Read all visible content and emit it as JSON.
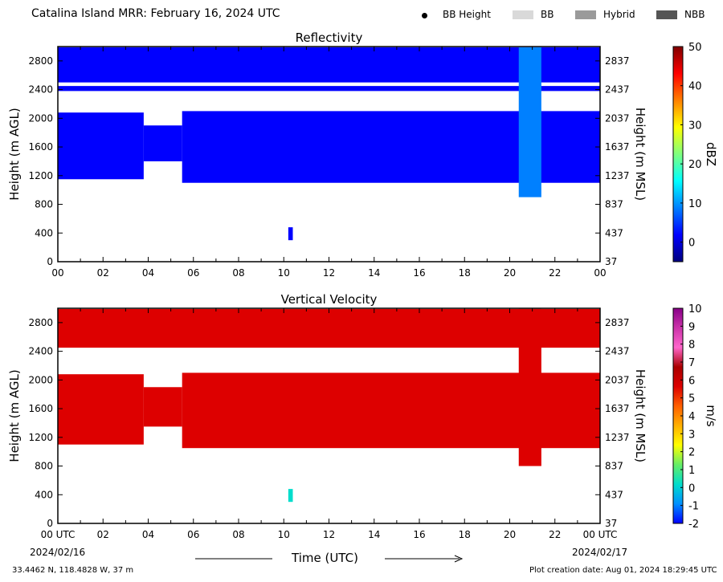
{
  "header": {
    "title": "Catalina Island MRR:  February 16, 2024 UTC",
    "legend": [
      {
        "label": "BB Height",
        "marker": "dot",
        "color": "#000000"
      },
      {
        "label": "BB",
        "marker": "box",
        "color": "#d9d9d9"
      },
      {
        "label": "Hybrid",
        "marker": "box",
        "color": "#9a9a9a"
      },
      {
        "label": "NBB",
        "marker": "box",
        "color": "#555555"
      }
    ]
  },
  "footer": {
    "location": "33.4462 N, 118.4828 W, 37 m",
    "creation": "Plot creation date: Aug 01, 2024 18:29:45 UTC",
    "xlabel": "Time (UTC)",
    "start_date": "2024/02/16",
    "end_date": "2024/02/17"
  },
  "chart_data": [
    {
      "type": "heatmap",
      "title": "Reflectivity",
      "ylabel": "Height (m AGL)",
      "ylabel_right": "Height (m MSL)",
      "xlim": [
        0,
        24
      ],
      "ylim": [
        0,
        3000
      ],
      "x_ticks": [
        "00",
        "02",
        "04",
        "06",
        "08",
        "10",
        "12",
        "14",
        "16",
        "18",
        "20",
        "22",
        "00"
      ],
      "y_ticks": [
        0,
        400,
        800,
        1200,
        1600,
        2000,
        2400,
        2800
      ],
      "y_ticks_right": [
        37,
        437,
        837,
        1237,
        1637,
        2037,
        2437,
        2837
      ],
      "colorbar": {
        "label": "dBZ",
        "min": -5,
        "max": 50,
        "ticks": [
          0,
          10,
          20,
          30,
          40,
          50
        ],
        "colors": [
          "#00007f",
          "#0000ff",
          "#0080ff",
          "#00ffff",
          "#7fff7f",
          "#ffff00",
          "#ff8000",
          "#ff0000",
          "#7f0000"
        ]
      },
      "value_color": "#0a44ff",
      "regions": [
        {
          "t": [
            0,
            24
          ],
          "z": [
            2500,
            2990
          ],
          "value": 3
        },
        {
          "t": [
            0,
            24
          ],
          "z": [
            2380,
            2450
          ],
          "value": 2
        },
        {
          "t": [
            0,
            3.8
          ],
          "z": [
            1150,
            2080
          ],
          "value": 3
        },
        {
          "t": [
            3.8,
            5.5
          ],
          "z": [
            1400,
            1900
          ],
          "value": 2
        },
        {
          "t": [
            5.5,
            24
          ],
          "z": [
            1100,
            2100
          ],
          "value": 3
        },
        {
          "t": [
            20.4,
            21.4
          ],
          "z": [
            900,
            2990
          ],
          "value": 7
        },
        {
          "t": [
            10.2,
            10.4
          ],
          "z": [
            300,
            480
          ],
          "value": 3
        }
      ]
    },
    {
      "type": "heatmap",
      "title": "Vertical Velocity",
      "ylabel": "Height (m AGL)",
      "ylabel_right": "Height (m MSL)",
      "xlim": [
        0,
        24
      ],
      "ylim": [
        0,
        3000
      ],
      "x_ticks": [
        "00 UTC",
        "02",
        "04",
        "06",
        "08",
        "10",
        "12",
        "14",
        "16",
        "18",
        "20",
        "22",
        "00 UTC"
      ],
      "y_ticks": [
        0,
        400,
        800,
        1200,
        1600,
        2000,
        2400,
        2800
      ],
      "y_ticks_right": [
        37,
        437,
        837,
        1237,
        1637,
        2037,
        2437,
        2837
      ],
      "colorbar": {
        "label": "m/s",
        "min": -2,
        "max": 10,
        "ticks": [
          -2,
          -1,
          0,
          1,
          2,
          3,
          4,
          5,
          6,
          7,
          8,
          9,
          10
        ],
        "colors": [
          "#0000ff",
          "#0090ff",
          "#00ddcc",
          "#66ee66",
          "#ffff00",
          "#ffb000",
          "#ff6000",
          "#dd0000",
          "#aa0000",
          "#ff66cc",
          "#cc33aa",
          "#880088"
        ]
      },
      "value_color": "#c01100",
      "regions": [
        {
          "t": [
            0,
            24
          ],
          "z": [
            2450,
            2990
          ],
          "value": 6
        },
        {
          "t": [
            0,
            3.8
          ],
          "z": [
            1100,
            2080
          ],
          "value": 6
        },
        {
          "t": [
            3.8,
            5.5
          ],
          "z": [
            1350,
            1900
          ],
          "value": 6
        },
        {
          "t": [
            5.5,
            24
          ],
          "z": [
            1050,
            2100
          ],
          "value": 6
        },
        {
          "t": [
            20.4,
            21.4
          ],
          "z": [
            800,
            2990
          ],
          "value": 6
        },
        {
          "t": [
            10.2,
            10.4
          ],
          "z": [
            300,
            480
          ],
          "value": 0.5
        }
      ]
    }
  ]
}
